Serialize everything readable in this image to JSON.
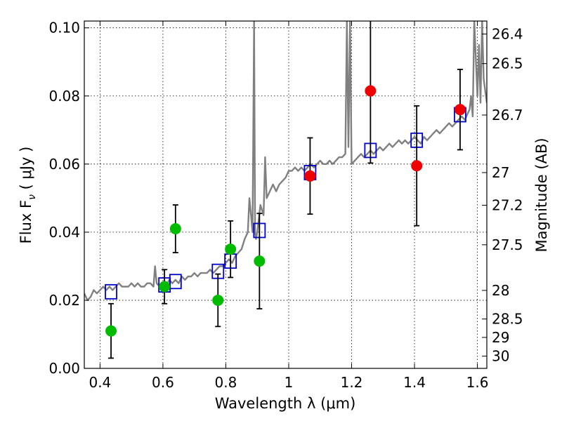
{
  "chart_data": {
    "type": "scatter",
    "xlabel": "Wavelength  λ (μm)",
    "ylabel": "Flux  F",
    "ylabel_sub": "ν",
    "ylabel_unit": "  ( μJy )",
    "y2label": "Magnitude (AB)",
    "xlim": [
      0.35,
      1.63
    ],
    "ylim": [
      0.0,
      0.102
    ],
    "grid": true,
    "x_ticks": [
      {
        "value": 0.4,
        "label": "0.4"
      },
      {
        "value": 0.6,
        "label": "0.6"
      },
      {
        "value": 0.8,
        "label": "0.8"
      },
      {
        "value": 1.0,
        "label": "1"
      },
      {
        "value": 1.2,
        "label": "1.2"
      },
      {
        "value": 1.4,
        "label": "1.4"
      },
      {
        "value": 1.6,
        "label": "1.6"
      }
    ],
    "y_ticks": [
      {
        "value": 0.0,
        "label": "0.00"
      },
      {
        "value": 0.02,
        "label": "0.02"
      },
      {
        "value": 0.04,
        "label": "0.04"
      },
      {
        "value": 0.06,
        "label": "0.06"
      },
      {
        "value": 0.08,
        "label": "0.08"
      },
      {
        "value": 0.1,
        "label": "0.10"
      }
    ],
    "mag_ticks": [
      {
        "value": 0.0982,
        "label": "26.4"
      },
      {
        "value": 0.0895,
        "label": "26.5"
      },
      {
        "value": 0.0744,
        "label": "26.7"
      },
      {
        "value": 0.0575,
        "label": "27"
      },
      {
        "value": 0.0479,
        "label": "27.2"
      },
      {
        "value": 0.0363,
        "label": "27.5"
      },
      {
        "value": 0.0229,
        "label": "28"
      },
      {
        "value": 0.0145,
        "label": "28.5"
      },
      {
        "value": 0.0091,
        "label": "29"
      },
      {
        "value": 0.0036,
        "label": "30"
      }
    ],
    "colors": {
      "spectrum": "#808080",
      "model": "#0000cc",
      "green": "#00bb00",
      "red": "#ee0000",
      "errorbar": "#000000"
    },
    "spectrum": {
      "name": "",
      "x": [
        0.35,
        0.36,
        0.37,
        0.38,
        0.39,
        0.4,
        0.41,
        0.42,
        0.43,
        0.44,
        0.45,
        0.46,
        0.47,
        0.48,
        0.49,
        0.5,
        0.51,
        0.52,
        0.53,
        0.54,
        0.55,
        0.56,
        0.57,
        0.575,
        0.58,
        0.59,
        0.6,
        0.61,
        0.62,
        0.63,
        0.64,
        0.65,
        0.66,
        0.67,
        0.68,
        0.69,
        0.7,
        0.71,
        0.72,
        0.73,
        0.74,
        0.75,
        0.76,
        0.77,
        0.78,
        0.79,
        0.8,
        0.81,
        0.82,
        0.83,
        0.84,
        0.85,
        0.86,
        0.87,
        0.875,
        0.88,
        0.885,
        0.89,
        0.893,
        0.896,
        0.9,
        0.91,
        0.92,
        0.925,
        0.93,
        0.94,
        0.95,
        0.96,
        0.97,
        0.98,
        0.99,
        1.0,
        1.01,
        1.02,
        1.03,
        1.04,
        1.05,
        1.06,
        1.07,
        1.08,
        1.09,
        1.1,
        1.11,
        1.12,
        1.13,
        1.14,
        1.15,
        1.16,
        1.17,
        1.18,
        1.185,
        1.19,
        1.195,
        1.2,
        1.21,
        1.22,
        1.23,
        1.24,
        1.25,
        1.26,
        1.27,
        1.28,
        1.29,
        1.3,
        1.31,
        1.32,
        1.33,
        1.34,
        1.35,
        1.36,
        1.37,
        1.38,
        1.39,
        1.4,
        1.41,
        1.42,
        1.43,
        1.44,
        1.45,
        1.46,
        1.47,
        1.48,
        1.49,
        1.5,
        1.51,
        1.52,
        1.53,
        1.54,
        1.55,
        1.56,
        1.57,
        1.575,
        1.58,
        1.585,
        1.59,
        1.6,
        1.605,
        1.61,
        1.615,
        1.62,
        1.63
      ],
      "y": [
        0.022,
        0.02,
        0.021,
        0.023,
        0.022,
        0.023,
        0.024,
        0.023,
        0.024,
        0.023,
        0.024,
        0.025,
        0.024,
        0.024,
        0.024,
        0.025,
        0.024,
        0.025,
        0.024,
        0.024,
        0.025,
        0.025,
        0.024,
        0.03,
        0.025,
        0.024,
        0.025,
        0.024,
        0.026,
        0.025,
        0.026,
        0.025,
        0.027,
        0.026,
        0.027,
        0.027,
        0.028,
        0.027,
        0.028,
        0.028,
        0.028,
        0.029,
        0.028,
        0.029,
        0.03,
        0.03,
        0.031,
        0.032,
        0.031,
        0.033,
        0.034,
        0.035,
        0.038,
        0.04,
        0.05,
        0.045,
        0.04,
        0.102,
        0.04,
        0.038,
        0.04,
        0.048,
        0.045,
        0.062,
        0.05,
        0.052,
        0.054,
        0.052,
        0.054,
        0.055,
        0.056,
        0.058,
        0.058,
        0.059,
        0.058,
        0.059,
        0.058,
        0.059,
        0.06,
        0.059,
        0.06,
        0.061,
        0.06,
        0.06,
        0.061,
        0.06,
        0.061,
        0.062,
        0.062,
        0.063,
        0.102,
        0.065,
        0.102,
        0.06,
        0.061,
        0.062,
        0.063,
        0.062,
        0.063,
        0.064,
        0.063,
        0.064,
        0.065,
        0.064,
        0.065,
        0.066,
        0.065,
        0.066,
        0.067,
        0.066,
        0.067,
        0.066,
        0.067,
        0.068,
        0.067,
        0.066,
        0.068,
        0.067,
        0.068,
        0.069,
        0.07,
        0.069,
        0.07,
        0.071,
        0.072,
        0.071,
        0.072,
        0.073,
        0.074,
        0.073,
        0.075,
        0.076,
        0.08,
        0.074,
        0.102,
        0.08,
        0.095,
        0.078,
        0.102,
        0.085,
        0.078
      ]
    },
    "model_points": {
      "name": "",
      "x": [
        0.435,
        0.605,
        0.64,
        0.775,
        0.815,
        0.907,
        1.068,
        1.26,
        1.407,
        1.545
      ],
      "y": [
        0.0225,
        0.0245,
        0.0255,
        0.0285,
        0.0315,
        0.0405,
        0.0575,
        0.064,
        0.067,
        0.0745
      ]
    },
    "green_points": {
      "name": "",
      "x": [
        0.435,
        0.605,
        0.64,
        0.775,
        0.815,
        0.907
      ],
      "y": [
        0.011,
        0.024,
        0.041,
        0.02,
        0.035,
        0.0315
      ],
      "err": [
        0.008,
        0.005,
        0.007,
        0.0077,
        0.0083,
        0.014
      ]
    },
    "red_points": {
      "name": "",
      "x": [
        1.068,
        1.26,
        1.407,
        1.545
      ],
      "y": [
        0.0565,
        0.0815,
        0.0595,
        0.076
      ],
      "err": [
        0.0112,
        0.0212,
        0.0176,
        0.0118
      ]
    }
  }
}
